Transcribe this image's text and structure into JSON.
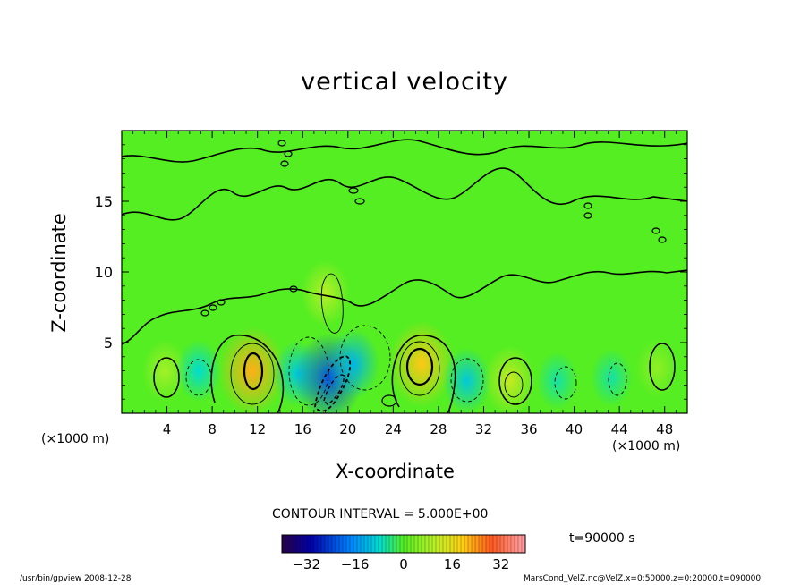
{
  "chart_data": {
    "type": "heatmap",
    "title": "vertical velocity",
    "xlabel": "X-coordinate",
    "ylabel": "Z-coordinate",
    "x_unit_left": "(×1000 m)",
    "x_unit_right": "(×1000 m)",
    "xlim": [
      0,
      50
    ],
    "ylim": [
      0,
      20
    ],
    "x_ticks": [
      4,
      8,
      12,
      16,
      20,
      24,
      28,
      32,
      36,
      40,
      44,
      48
    ],
    "y_ticks": [
      5,
      10,
      15
    ],
    "contour_interval_text": "CONTOUR INTERVAL = 5.000E+00",
    "time_text": "t=90000 s",
    "colorbar": {
      "range": [
        -40,
        40
      ],
      "ticks": [
        -32,
        -16,
        0,
        16,
        32
      ]
    },
    "features": [
      {
        "x": 3.8,
        "z": 3.0,
        "value": 8
      },
      {
        "x": 6.8,
        "z": 3.0,
        "value": -8
      },
      {
        "x": 11.5,
        "z": 3.0,
        "value": 22
      },
      {
        "x": 15.5,
        "z": 2.8,
        "value": -10
      },
      {
        "x": 18.3,
        "z": 2.5,
        "value": -22
      },
      {
        "x": 20.5,
        "z": 3.5,
        "value": -12
      },
      {
        "x": 26.5,
        "z": 3.5,
        "value": 20
      },
      {
        "x": 30.5,
        "z": 2.3,
        "value": -10
      },
      {
        "x": 34.3,
        "z": 2.3,
        "value": 12
      },
      {
        "x": 38.5,
        "z": 2.3,
        "value": -6
      },
      {
        "x": 43.3,
        "z": 2.5,
        "value": -6
      },
      {
        "x": 47.3,
        "z": 3.2,
        "value": 6
      },
      {
        "x": 18.0,
        "z": 8.5,
        "value": 10
      }
    ]
  },
  "footer": {
    "program": "/usr/bin/gpview  2008-12-28",
    "file": "MarsCond_VelZ.nc@VelZ,x=0:50000,z=0:20000,t=090000"
  }
}
